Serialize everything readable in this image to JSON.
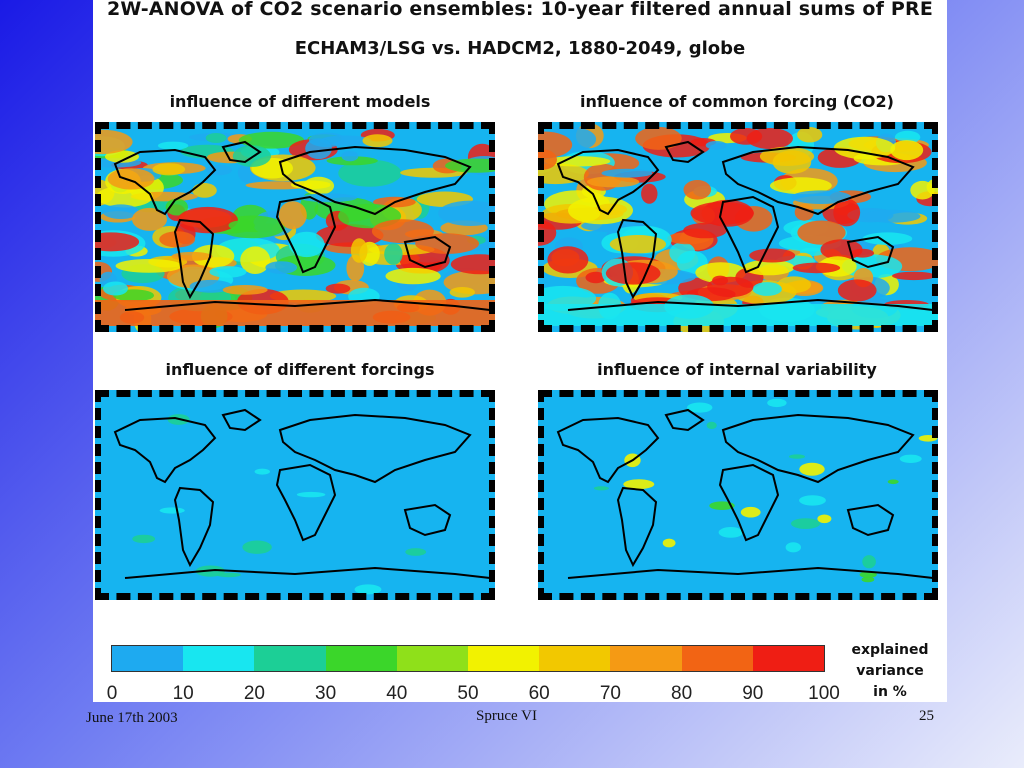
{
  "header": {
    "title": "2W-ANOVA of CO2 scenario ensembles: 10-year filtered annual sums of PRE",
    "subtitle": "ECHAM3/LSG vs. HADCM2, 1880-2049, globe"
  },
  "maps": [
    {
      "title": "influence of different models",
      "pattern": "mixed"
    },
    {
      "title": "influence of common forcing (CO2)",
      "pattern": "high"
    },
    {
      "title": "influence of different forcings",
      "pattern": "low"
    },
    {
      "title": "influence of internal variability",
      "pattern": "low-speckle"
    }
  ],
  "legend": {
    "colors": [
      "#1eaaf0",
      "#18e6f0",
      "#1ccf96",
      "#3bd62a",
      "#8fe01a",
      "#f2f200",
      "#f2c800",
      "#f59a14",
      "#f26414",
      "#ef1e14"
    ],
    "ticks": [
      "0",
      "10",
      "20",
      "30",
      "40",
      "50",
      "60",
      "70",
      "80",
      "90",
      "100"
    ],
    "caption_lines": [
      "explained",
      "variance",
      "in %"
    ]
  },
  "footer": {
    "date": "June 17th 2003",
    "center": "Spruce  VI",
    "page": "25"
  }
}
